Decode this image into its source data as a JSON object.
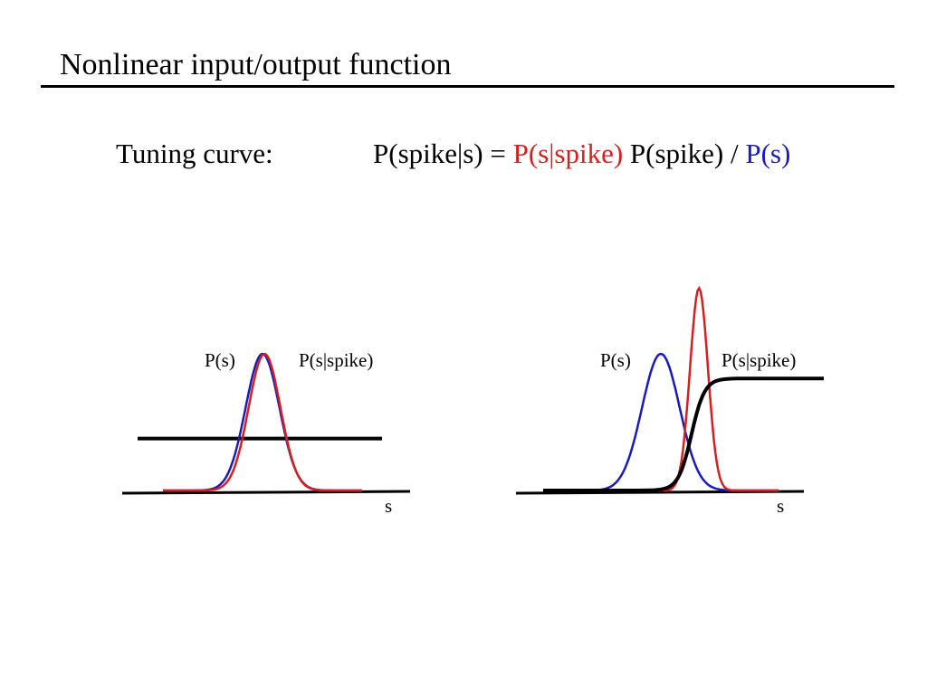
{
  "slide": {
    "title": "Nonlinear input/output function",
    "tuning_label": "Tuning curve:",
    "formula": {
      "lhs": "P(spike|s) = ",
      "likelihood": "P(s|spike)",
      "prior_spike": " P(spike) / ",
      "prior_s": "P(s)"
    }
  },
  "colors": {
    "prior_s": "#1a1ab8",
    "likelihood": "#d42020",
    "tuning_curve": "#000000"
  },
  "chart_data": [
    {
      "type": "line",
      "title": "",
      "xlabel": "s",
      "ylabel": "",
      "xlim": [
        0,
        10
      ],
      "ylim": [
        0,
        1
      ],
      "series": [
        {
          "name": "P(s)",
          "kind": "gaussian",
          "mean": 5.0,
          "sd": 0.85,
          "amplitude": 1.0
        },
        {
          "name": "P(s|spike)",
          "kind": "gaussian",
          "mean": 5.1,
          "sd": 0.8,
          "amplitude": 1.0
        },
        {
          "name": "tuning",
          "kind": "constant",
          "value": 0.38
        }
      ]
    },
    {
      "type": "line",
      "title": "",
      "xlabel": "s",
      "ylabel": "",
      "xlim": [
        0,
        10
      ],
      "ylim": [
        0,
        1.48
      ],
      "series": [
        {
          "name": "P(s)",
          "kind": "gaussian",
          "mean": 5.0,
          "sd": 0.8,
          "amplitude": 1.0
        },
        {
          "name": "P(s|spike)",
          "kind": "gaussian",
          "mean": 6.62,
          "sd": 0.38,
          "amplitude": 1.48
        },
        {
          "name": "tuning",
          "kind": "sigmoid",
          "center": 6.3,
          "slope": 0.28,
          "amplitude": 0.82
        }
      ]
    }
  ]
}
